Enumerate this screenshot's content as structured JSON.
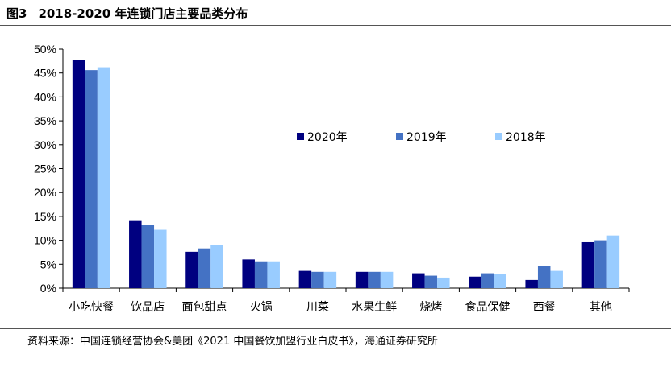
{
  "figure": {
    "number": "图3",
    "title": "2018-2020 年连锁门店主要品类分布"
  },
  "source_note": "资料来源：中国连锁经营协会&美团《2021 中国餐饮加盟行业白皮书》，海通证券研究所",
  "chart_data": {
    "type": "bar",
    "title": "2018-2020 年连锁门店主要品类分布",
    "xlabel": "",
    "ylabel": "",
    "ylim": [
      0,
      50
    ],
    "yticks": [
      0,
      5,
      10,
      15,
      20,
      25,
      30,
      35,
      40,
      45,
      50
    ],
    "ytick_labels": [
      "0%",
      "5%",
      "10%",
      "15%",
      "20%",
      "25%",
      "30%",
      "35%",
      "40%",
      "45%",
      "50%"
    ],
    "grid": false,
    "legend_position": "center-right",
    "categories": [
      "小吃快餐",
      "饮品店",
      "面包甜点",
      "火锅",
      "川菜",
      "水果生鲜",
      "烧烤",
      "食品保健",
      "西餐",
      "其他"
    ],
    "series": [
      {
        "name": "2020年",
        "color": "#000080",
        "values": [
          47.7,
          14.2,
          7.6,
          6.0,
          3.6,
          3.4,
          3.1,
          2.4,
          1.7,
          9.6
        ]
      },
      {
        "name": "2019年",
        "color": "#4472C4",
        "values": [
          45.6,
          13.2,
          8.3,
          5.6,
          3.4,
          3.4,
          2.6,
          3.1,
          4.6,
          10.0
        ]
      },
      {
        "name": "2018年",
        "color": "#99CCFF",
        "values": [
          46.2,
          12.2,
          9.0,
          5.6,
          3.4,
          3.4,
          2.2,
          2.9,
          3.6,
          11.0
        ]
      }
    ]
  }
}
